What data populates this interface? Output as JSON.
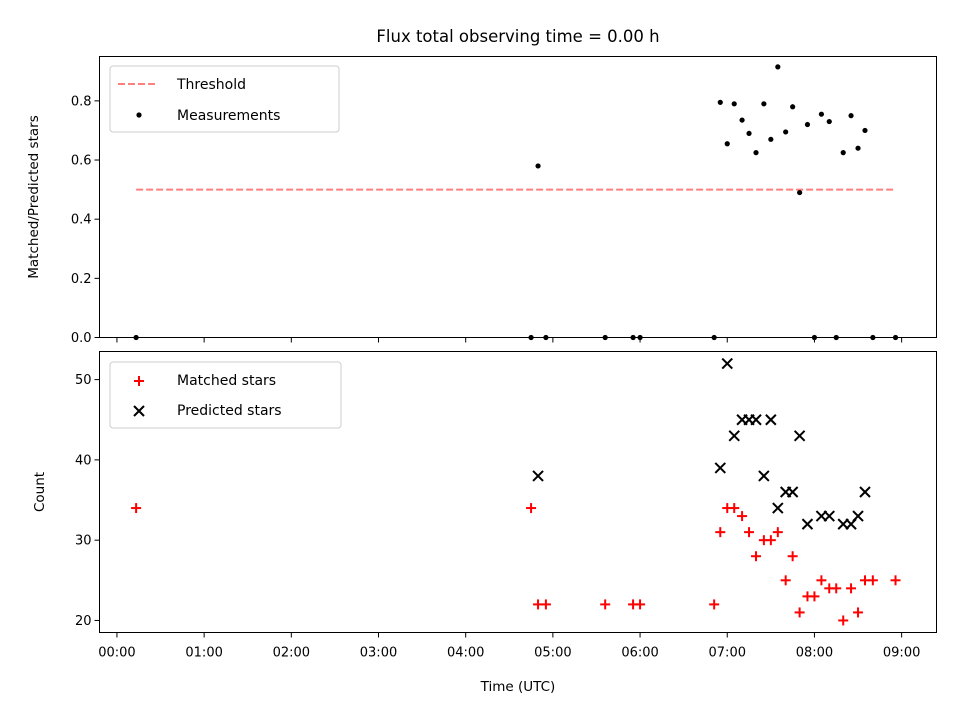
{
  "chart_data": [
    {
      "type": "scatter",
      "title": "Flux total observing time = 0.00 h",
      "xlabel": "",
      "ylabel": "Matched/Predicted stars",
      "x_unit": "hours after 00:00 UTC",
      "xlim": [
        -0.2,
        9.4
      ],
      "ylim": [
        0,
        0.95
      ],
      "yticks": [
        0.0,
        0.2,
        0.4,
        0.6,
        0.8
      ],
      "ytick_labels": [
        "0.0",
        "0.2",
        "0.4",
        "0.6",
        "0.8"
      ],
      "grid": false,
      "legend": {
        "position": "top-left",
        "entries": [
          "Threshold",
          "Measurements"
        ]
      },
      "threshold": {
        "name": "Threshold",
        "value": 0.5,
        "x_range": [
          0.22,
          8.93
        ],
        "color": "#ff7f7f",
        "style": "dashed"
      },
      "series": [
        {
          "name": "Measurements",
          "color": "#000000",
          "marker": "dot",
          "points": [
            [
              0.22,
              0.0
            ],
            [
              4.75,
              0.0
            ],
            [
              4.83,
              0.58
            ],
            [
              4.92,
              0.0
            ],
            [
              5.6,
              0.0
            ],
            [
              5.92,
              0.0
            ],
            [
              6.0,
              0.0
            ],
            [
              6.85,
              0.0
            ],
            [
              6.92,
              0.795
            ],
            [
              7.0,
              0.655
            ],
            [
              7.08,
              0.79
            ],
            [
              7.17,
              0.735
            ],
            [
              7.25,
              0.69
            ],
            [
              7.33,
              0.625
            ],
            [
              7.42,
              0.79
            ],
            [
              7.5,
              0.67
            ],
            [
              7.58,
              0.915
            ],
            [
              7.67,
              0.695
            ],
            [
              7.75,
              0.78
            ],
            [
              7.83,
              0.49
            ],
            [
              7.92,
              0.72
            ],
            [
              8.0,
              0.0
            ],
            [
              8.08,
              0.755
            ],
            [
              8.17,
              0.73
            ],
            [
              8.25,
              0.0
            ],
            [
              8.33,
              0.625
            ],
            [
              8.42,
              0.75
            ],
            [
              8.5,
              0.64
            ],
            [
              8.58,
              0.7
            ],
            [
              8.67,
              0.0
            ],
            [
              8.93,
              0.0
            ]
          ]
        }
      ]
    },
    {
      "type": "scatter",
      "title": "",
      "xlabel": "Time (UTC)",
      "ylabel": "Count",
      "x_unit": "hours after 00:00 UTC",
      "xlim": [
        -0.2,
        9.4
      ],
      "ylim": [
        18.5,
        53.5
      ],
      "xticks": [
        0,
        1,
        2,
        3,
        4,
        5,
        6,
        7,
        8,
        9
      ],
      "xtick_labels": [
        "00:00",
        "01:00",
        "02:00",
        "03:00",
        "04:00",
        "05:00",
        "06:00",
        "07:00",
        "08:00",
        "09:00"
      ],
      "yticks": [
        20,
        30,
        40,
        50
      ],
      "ytick_labels": [
        "20",
        "30",
        "40",
        "50"
      ],
      "grid": false,
      "legend": {
        "position": "top-left",
        "entries": [
          "Matched stars",
          "Predicted stars"
        ]
      },
      "series": [
        {
          "name": "Matched stars",
          "color": "#ff0000",
          "marker": "plus",
          "points": [
            [
              0.22,
              34
            ],
            [
              4.75,
              34
            ],
            [
              4.83,
              22
            ],
            [
              4.92,
              22
            ],
            [
              5.6,
              22
            ],
            [
              5.92,
              22
            ],
            [
              6.0,
              22
            ],
            [
              6.85,
              22
            ],
            [
              6.92,
              31
            ],
            [
              7.0,
              34
            ],
            [
              7.08,
              34
            ],
            [
              7.17,
              33
            ],
            [
              7.25,
              31
            ],
            [
              7.33,
              28
            ],
            [
              7.42,
              30
            ],
            [
              7.5,
              30
            ],
            [
              7.58,
              31
            ],
            [
              7.67,
              25
            ],
            [
              7.75,
              28
            ],
            [
              7.83,
              21
            ],
            [
              7.92,
              23
            ],
            [
              8.0,
              23
            ],
            [
              8.08,
              25
            ],
            [
              8.17,
              24
            ],
            [
              8.25,
              24
            ],
            [
              8.33,
              20
            ],
            [
              8.42,
              24
            ],
            [
              8.5,
              21
            ],
            [
              8.58,
              25
            ],
            [
              8.67,
              25
            ],
            [
              8.93,
              25
            ]
          ]
        },
        {
          "name": "Predicted stars",
          "color": "#000000",
          "marker": "x",
          "points": [
            [
              4.83,
              38
            ],
            [
              6.92,
              39
            ],
            [
              7.0,
              52
            ],
            [
              7.08,
              43
            ],
            [
              7.17,
              45
            ],
            [
              7.25,
              45
            ],
            [
              7.33,
              45
            ],
            [
              7.42,
              38
            ],
            [
              7.5,
              45
            ],
            [
              7.58,
              34
            ],
            [
              7.67,
              36
            ],
            [
              7.75,
              36
            ],
            [
              7.83,
              43
            ],
            [
              7.92,
              32
            ],
            [
              8.08,
              33
            ],
            [
              8.17,
              33
            ],
            [
              8.33,
              32
            ],
            [
              8.42,
              32
            ],
            [
              8.5,
              33
            ],
            [
              8.58,
              36
            ]
          ]
        }
      ]
    }
  ]
}
